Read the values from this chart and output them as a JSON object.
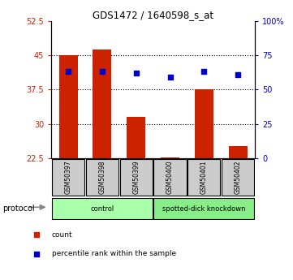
{
  "title": "GDS1472 / 1640598_s_at",
  "samples": [
    "GSM50397",
    "GSM50398",
    "GSM50399",
    "GSM50400",
    "GSM50401",
    "GSM50402"
  ],
  "bar_values": [
    45.0,
    46.3,
    31.5,
    22.7,
    37.6,
    25.2
  ],
  "bar_bottom": 22.5,
  "percentile_values": [
    63,
    63,
    62,
    59,
    63,
    61
  ],
  "ylim_left": [
    22.5,
    52.5
  ],
  "ylim_right": [
    0,
    100
  ],
  "yticks_left": [
    22.5,
    30.0,
    37.5,
    45.0,
    52.5
  ],
  "ytick_labels_left": [
    "22.5",
    "30",
    "37.5",
    "45",
    "52.5"
  ],
  "yticks_right": [
    0,
    25,
    50,
    75,
    100
  ],
  "ytick_labels_right": [
    "0",
    "25",
    "50",
    "75",
    "100%"
  ],
  "bar_color": "#CC2200",
  "dot_color": "#0000CC",
  "protocol_groups": [
    {
      "label": "control",
      "start": 0,
      "end": 3,
      "color": "#AAFFAA"
    },
    {
      "label": "spotted-dick knockdown",
      "start": 3,
      "end": 6,
      "color": "#88EE88"
    }
  ],
  "protocol_label": "protocol",
  "legend_items": [
    {
      "color": "#CC2200",
      "label": "count"
    },
    {
      "color": "#0000CC",
      "label": "percentile rank within the sample"
    }
  ],
  "grid_color": "#555555",
  "left_tick_color": "#CC2200",
  "right_tick_color": "#0000CC",
  "bar_width": 0.55,
  "sample_box_color": "#CCCCCC",
  "fig_bg": "#FFFFFF"
}
